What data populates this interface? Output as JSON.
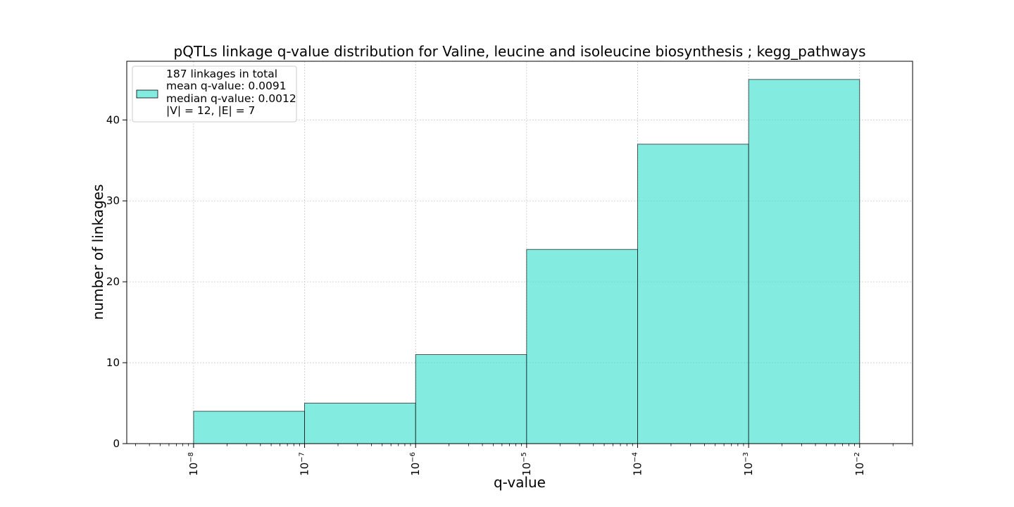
{
  "chart_data": {
    "type": "bar",
    "title": "pQTLs linkage q-value distribution for Valine, leucine and isoleucine biosynthesis ; kegg_pathways",
    "xlabel": "q-value",
    "ylabel": "number of linkages",
    "x_scale": "log",
    "xlim": [
      2.5e-09,
      0.03
    ],
    "ylim": [
      0,
      47.25
    ],
    "grid": true,
    "bin_edges": [
      1e-08,
      1e-07,
      1e-06,
      1e-05,
      0.0001,
      0.001,
      0.01
    ],
    "values": [
      4,
      5,
      11,
      24,
      37,
      45
    ],
    "x_ticks": [
      {
        "value": 1e-08,
        "base": "10",
        "exp": "−8"
      },
      {
        "value": 1e-07,
        "base": "10",
        "exp": "−7"
      },
      {
        "value": 1e-06,
        "base": "10",
        "exp": "−6"
      },
      {
        "value": 1e-05,
        "base": "10",
        "exp": "−5"
      },
      {
        "value": 0.0001,
        "base": "10",
        "exp": "−4"
      },
      {
        "value": 0.001,
        "base": "10",
        "exp": "−3"
      },
      {
        "value": 0.01,
        "base": "10",
        "exp": "−2"
      }
    ],
    "y_ticks": [
      {
        "value": 0,
        "label": "0"
      },
      {
        "value": 10,
        "label": "10"
      },
      {
        "value": 20,
        "label": "20"
      },
      {
        "value": 30,
        "label": "30"
      },
      {
        "value": 40,
        "label": "40"
      }
    ],
    "bar_color": "#40e0d0",
    "bar_edge_color": "#000000",
    "legend": {
      "placement": "top-left",
      "lines": [
        "187 linkages in total",
        "mean q-value: 0.0091",
        "median q-value: 0.0012",
        "|V| = 12, |E| = 7"
      ]
    }
  }
}
